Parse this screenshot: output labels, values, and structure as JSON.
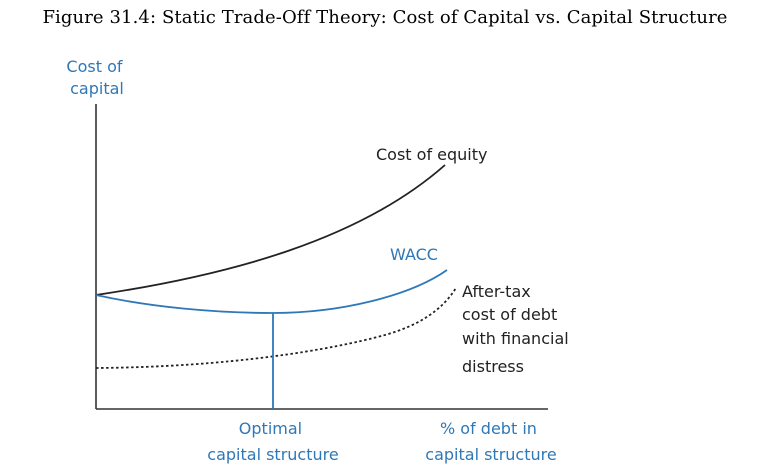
{
  "title": "Figure 31.4: Static Trade-Off Theory: Cost of Capital vs. Capital Structure",
  "y_axis_label": [
    "Cost of",
    "capital"
  ],
  "x_axis_label": [
    "% of debt in",
    "capital structure"
  ],
  "optimal_label": [
    "Optimal",
    "capital structure"
  ],
  "curves": {
    "equity": "Cost of equity",
    "wacc": "WACC",
    "debt": [
      "After-tax",
      "cost of debt",
      "with financial",
      "distress"
    ]
  },
  "colors": {
    "blue": "#2e78b8",
    "black": "#222222"
  }
}
